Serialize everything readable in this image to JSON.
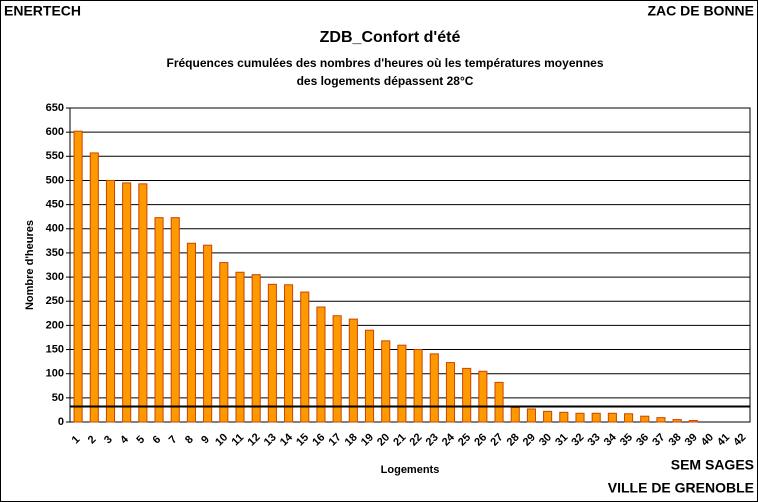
{
  "chart_data": {
    "type": "bar",
    "title": "ZDB_Confort d'été",
    "subtitle": [
      "Fréquences cumulées des nombres d'heures où les températures moyennes",
      "des logements dépassent 28°C"
    ],
    "header_left": "ENERTECH",
    "header_right": "ZAC DE BONNE",
    "footer": [
      "SEM SAGES",
      "VILLE DE GRENOBLE"
    ],
    "x_label": "Logements",
    "y_label": "Nombre d'heures",
    "categories": [
      "1",
      "2",
      "3",
      "4",
      "5",
      "6",
      "7",
      "8",
      "9",
      "10",
      "11",
      "12",
      "13",
      "14",
      "15",
      "16",
      "17",
      "18",
      "19",
      "20",
      "21",
      "22",
      "23",
      "24",
      "25",
      "26",
      "27",
      "28",
      "29",
      "30",
      "31",
      "32",
      "33",
      "34",
      "35",
      "36",
      "37",
      "38",
      "39",
      "40",
      "41",
      "42"
    ],
    "values": [
      602,
      557,
      500,
      495,
      493,
      423,
      423,
      370,
      366,
      330,
      310,
      305,
      285,
      284,
      269,
      238,
      220,
      213,
      190,
      168,
      159,
      150,
      141,
      123,
      111,
      105,
      82,
      30,
      27,
      22,
      20,
      18,
      18,
      18,
      17,
      12,
      9,
      5,
      3,
      0,
      0,
      0
    ],
    "color": "#ff9900",
    "reference_line": 32,
    "ylim": [
      0,
      650
    ],
    "yticks": [
      0,
      50,
      100,
      150,
      200,
      250,
      300,
      350,
      400,
      450,
      500,
      550,
      600,
      650
    ],
    "grid": true
  }
}
